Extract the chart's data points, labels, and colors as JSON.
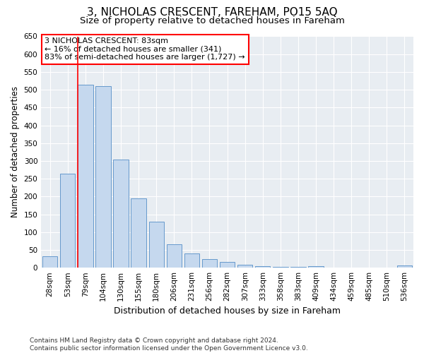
{
  "title": "3, NICHOLAS CRESCENT, FAREHAM, PO15 5AQ",
  "subtitle": "Size of property relative to detached houses in Fareham",
  "xlabel": "Distribution of detached houses by size in Fareham",
  "ylabel": "Number of detached properties",
  "categories": [
    "28sqm",
    "53sqm",
    "79sqm",
    "104sqm",
    "130sqm",
    "155sqm",
    "180sqm",
    "206sqm",
    "231sqm",
    "256sqm",
    "282sqm",
    "307sqm",
    "333sqm",
    "358sqm",
    "383sqm",
    "409sqm",
    "434sqm",
    "459sqm",
    "485sqm",
    "510sqm",
    "536sqm"
  ],
  "values": [
    32,
    265,
    515,
    510,
    303,
    195,
    130,
    65,
    40,
    25,
    17,
    8,
    4,
    3,
    2,
    5,
    0,
    0,
    0,
    0,
    7
  ],
  "bar_color": "#c5d8ee",
  "bar_edge_color": "#6699cc",
  "background_color": "#e8edf2",
  "red_line_index": 2,
  "annotation_line1": "3 NICHOLAS CRESCENT: 83sqm",
  "annotation_line2": "← 16% of detached houses are smaller (341)",
  "annotation_line3": "83% of semi-detached houses are larger (1,727) →",
  "annotation_box_color": "white",
  "annotation_box_edge_color": "red",
  "ylim": [
    0,
    650
  ],
  "yticks": [
    0,
    50,
    100,
    150,
    200,
    250,
    300,
    350,
    400,
    450,
    500,
    550,
    600,
    650
  ],
  "footnote_line1": "Contains HM Land Registry data © Crown copyright and database right 2024.",
  "footnote_line2": "Contains public sector information licensed under the Open Government Licence v3.0.",
  "title_fontsize": 11,
  "subtitle_fontsize": 9.5,
  "xlabel_fontsize": 9,
  "ylabel_fontsize": 8.5,
  "tick_fontsize": 7.5,
  "annotation_fontsize": 8,
  "footnote_fontsize": 6.5
}
